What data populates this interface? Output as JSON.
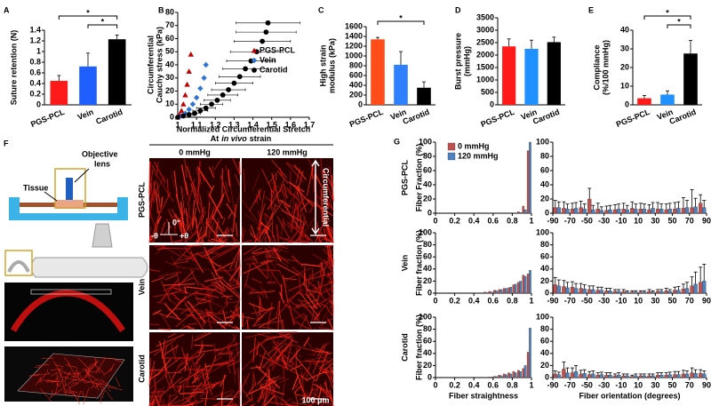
{
  "panel_labels": [
    "A",
    "B",
    "C",
    "D",
    "E",
    "F",
    "G"
  ],
  "imaging": {
    "heading": [
      "At",
      "in vivo",
      "strain"
    ],
    "columns": [
      "0 mmHg",
      "120 mmHg"
    ],
    "rows": [
      "PGS-PCL",
      "Vein",
      "Carotid"
    ],
    "schematic": {
      "tissue": "Tissue",
      "lens": [
        "Objective",
        "lens"
      ]
    },
    "orientation": {
      "zero": "0°",
      "minus": "-θ",
      "plus": "+θ"
    },
    "direction": "Circumferential",
    "scale": "100 μm"
  },
  "chart_data": [
    {
      "type": "bar",
      "ylabel": [
        "Suture retention (N)"
      ],
      "categories": [
        "PGS-PCL",
        "Vein",
        "Carotid"
      ],
      "values": [
        0.45,
        0.72,
        1.23
      ],
      "errors": [
        0.1,
        0.25,
        0.08
      ],
      "colors": [
        "#ff1a1a",
        "#1f5fff",
        "#000000"
      ],
      "ylim": [
        0,
        1.4
      ],
      "yticks": [
        0,
        0.2,
        0.4,
        0.6,
        0.8,
        1,
        1.2,
        1.4
      ],
      "significance": [
        {
          "categories": [
            "PGS-PCL",
            "Carotid"
          ],
          "text": "*"
        },
        {
          "categories": [
            "Vein",
            "Carotid"
          ],
          "text": "*"
        }
      ]
    },
    {
      "type": "scatter",
      "ylabel": [
        "Circumferential",
        "Cauchy stress (kPa)"
      ],
      "xlabel": "Normalized Circumferential Stretch",
      "xlim": [
        1,
        1.7
      ],
      "xticks": [
        1,
        1.1,
        1.2,
        1.3,
        1.4,
        1.5,
        1.6,
        1.7
      ],
      "ylim": [
        0,
        80
      ],
      "yticks": [
        0,
        10,
        20,
        30,
        40,
        50,
        60,
        70,
        80
      ],
      "legend": "center right",
      "series": [
        {
          "name": "PGS-PCL",
          "color": "#c00000",
          "marker": "triangle",
          "x": [
            1.0,
            1.01,
            1.02,
            1.03,
            1.04,
            1.05,
            1.06,
            1.07
          ],
          "values": [
            0,
            2,
            5,
            10,
            17,
            25,
            35,
            48
          ]
        },
        {
          "name": "Vein",
          "color": "#2e75d6",
          "marker": "diamond",
          "x": [
            1.0,
            1.02,
            1.04,
            1.06,
            1.08,
            1.1,
            1.12,
            1.14,
            1.15
          ],
          "values": [
            0,
            1,
            3,
            6,
            10,
            15,
            22,
            30,
            40
          ]
        },
        {
          "name": "Carotid",
          "color": "#000000",
          "marker": "circle",
          "x": [
            1.0,
            1.03,
            1.06,
            1.09,
            1.12,
            1.15,
            1.18,
            1.21,
            1.24,
            1.27,
            1.3,
            1.33,
            1.36,
            1.39,
            1.42,
            1.45,
            1.47,
            1.48
          ],
          "values": [
            0,
            1,
            2,
            3,
            5,
            7,
            10,
            13,
            17,
            21,
            26,
            31,
            37,
            43,
            50,
            58,
            65,
            72
          ],
          "x_errors": [
            0,
            0.01,
            0.02,
            0.03,
            0.04,
            0.05,
            0.06,
            0.07,
            0.08,
            0.09,
            0.1,
            0.11,
            0.12,
            0.13,
            0.14,
            0.15,
            0.16,
            0.17
          ]
        }
      ]
    },
    {
      "type": "bar",
      "ylabel": [
        "High strain",
        "modulus (kPa)"
      ],
      "categories": [
        "PGS-PCL",
        "Vein",
        "Carotid"
      ],
      "values": [
        1340,
        820,
        350
      ],
      "errors": [
        40,
        270,
        120
      ],
      "colors": [
        "#ff4d1a",
        "#2f80ff",
        "#000000"
      ],
      "ylim": [
        0,
        1600
      ],
      "yticks": [
        0,
        200,
        400,
        600,
        800,
        1000,
        1200,
        1400,
        1600
      ],
      "significance": [
        {
          "categories": [
            "PGS-PCL",
            "Carotid"
          ],
          "text": "*"
        }
      ]
    },
    {
      "type": "bar",
      "ylabel": [
        "Burst pressure",
        "(mmHg)"
      ],
      "categories": [
        "PGS-PCL",
        "Vein",
        "Carotid"
      ],
      "values": [
        2350,
        2250,
        2520
      ],
      "errors": [
        300,
        350,
        200
      ],
      "colors": [
        "#ff1a1a",
        "#1e90ff",
        "#000000"
      ],
      "ylim": [
        0,
        3500
      ],
      "yticks": [
        0,
        500,
        1000,
        1500,
        2000,
        2500,
        3000,
        3500
      ]
    },
    {
      "type": "bar",
      "ylabel": [
        "Compliance",
        "(%/100 mmHg)"
      ],
      "categories": [
        "PGS-PCL",
        "Vein",
        "Carotid"
      ],
      "values": [
        3.5,
        5.5,
        27.5
      ],
      "errors": [
        1.5,
        2,
        7
      ],
      "colors": [
        "#ff1a1a",
        "#1e90ff",
        "#000000"
      ],
      "ylim": [
        0,
        40
      ],
      "yticks": [
        0,
        10,
        20,
        30,
        40
      ],
      "significance": [
        {
          "categories": [
            "PGS-PCL",
            "Carotid"
          ],
          "text": "*"
        },
        {
          "categories": [
            "Vein",
            "Carotid"
          ],
          "text": "*"
        }
      ]
    },
    {
      "type": "bar",
      "row_label": "PGS-PCL",
      "ylabel": [
        "Fiber Fraction (%)"
      ],
      "legend": "upper left",
      "x": [
        0.525,
        0.575,
        0.625,
        0.675,
        0.725,
        0.775,
        0.825,
        0.875,
        0.925,
        0.975
      ],
      "xlim": [
        0,
        1
      ],
      "xticks": [
        0,
        0.2,
        0.4,
        0.6,
        0.8,
        1
      ],
      "ylim": [
        0,
        100
      ],
      "yticks": [
        0,
        20,
        40,
        60,
        80,
        100
      ],
      "series": [
        {
          "name": "0 mmHg",
          "color": "#c0504d",
          "values": [
            0,
            0,
            0,
            0,
            0,
            0,
            0,
            2,
            10,
            88
          ]
        },
        {
          "name": "120 mmHg",
          "color": "#4f81bd",
          "values": [
            0,
            0,
            0,
            0,
            0,
            0,
            0,
            1,
            5,
            100
          ]
        }
      ]
    },
    {
      "type": "bar",
      "x": [
        -85,
        -75,
        -65,
        -55,
        -45,
        -35,
        -25,
        -15,
        -5,
        5,
        15,
        25,
        35,
        45,
        55,
        65,
        75,
        85
      ],
      "xlim": [
        -90,
        90
      ],
      "xticks": [
        -90,
        -70,
        -50,
        -30,
        -10,
        10,
        30,
        50,
        70,
        90
      ],
      "ylim": [
        0,
        100
      ],
      "yticks": [
        0,
        20,
        40,
        60,
        80,
        100
      ],
      "series": [
        {
          "color": "#c0504d",
          "values": [
            8,
            7,
            6,
            8,
            20,
            6,
            4,
            5,
            6,
            7,
            6,
            5,
            6,
            5,
            6,
            7,
            8,
            14
          ],
          "errors": [
            10,
            9,
            8,
            9,
            15,
            8,
            6,
            7,
            8,
            9,
            8,
            7,
            9,
            8,
            9,
            15,
            25,
            12
          ]
        },
        {
          "color": "#4f81bd",
          "values": [
            8,
            6,
            7,
            6,
            5,
            4,
            5,
            6,
            5,
            6,
            6,
            7,
            6,
            6,
            7,
            8,
            9,
            8
          ],
          "errors": [
            8,
            7,
            8,
            7,
            6,
            5,
            6,
            7,
            6,
            7,
            7,
            8,
            7,
            8,
            9,
            10,
            12,
            10
          ]
        }
      ]
    },
    {
      "type": "bar",
      "row_label": "Vein",
      "ylabel": [
        "Fiber fraction (%)"
      ],
      "x": [
        0.525,
        0.575,
        0.625,
        0.675,
        0.725,
        0.775,
        0.825,
        0.875,
        0.925,
        0.975
      ],
      "xlim": [
        0,
        1
      ],
      "xticks": [
        0,
        0.2,
        0.4,
        0.6,
        0.8,
        1
      ],
      "ylim": [
        0,
        100
      ],
      "yticks": [
        0,
        20,
        40,
        60,
        80,
        100
      ],
      "series": [
        {
          "color": "#c0504d",
          "values": [
            2,
            3,
            5,
            6,
            8,
            9,
            14,
            18,
            30,
            32
          ]
        },
        {
          "color": "#4f81bd",
          "values": [
            1,
            2,
            4,
            6,
            8,
            10,
            15,
            20,
            28,
            38
          ]
        }
      ]
    },
    {
      "type": "bar",
      "x": [
        -85,
        -75,
        -65,
        -55,
        -45,
        -35,
        -25,
        -15,
        -5,
        5,
        15,
        25,
        35,
        45,
        55,
        65,
        75,
        85
      ],
      "xlim": [
        -90,
        90
      ],
      "xticks": [
        -90,
        -70,
        -50,
        -30,
        -10,
        10,
        30,
        50,
        70,
        90
      ],
      "ylim": [
        0,
        100
      ],
      "yticks": [
        0,
        20,
        40,
        60,
        80,
        100
      ],
      "series": [
        {
          "color": "#c0504d",
          "values": [
            14,
            11,
            10,
            8,
            6,
            5,
            4,
            3,
            3,
            2,
            2,
            3,
            3,
            4,
            5,
            7,
            12,
            18
          ],
          "errors": [
            12,
            10,
            9,
            8,
            6,
            5,
            4,
            3,
            3,
            2,
            2,
            3,
            3,
            4,
            5,
            8,
            15,
            25
          ]
        },
        {
          "color": "#4f81bd",
          "values": [
            12,
            9,
            8,
            7,
            6,
            5,
            4,
            3,
            2,
            2,
            2,
            2,
            3,
            3,
            5,
            8,
            15,
            20
          ],
          "errors": [
            10,
            9,
            8,
            7,
            6,
            5,
            4,
            3,
            2,
            2,
            2,
            2,
            3,
            3,
            6,
            10,
            20,
            28
          ]
        }
      ]
    },
    {
      "type": "bar",
      "row_label": "Carotid",
      "ylabel": [
        "Fiber fraction (%)"
      ],
      "xlabel": "Fiber straightness",
      "x": [
        0.525,
        0.575,
        0.625,
        0.675,
        0.725,
        0.775,
        0.825,
        0.875,
        0.925,
        0.975
      ],
      "xlim": [
        0,
        1
      ],
      "xticks": [
        0,
        0.2,
        0.4,
        0.6,
        0.8,
        1
      ],
      "ylim": [
        0,
        100
      ],
      "yticks": [
        0,
        20,
        40,
        60,
        80,
        100
      ],
      "series": [
        {
          "color": "#c0504d",
          "values": [
            0,
            1,
            2,
            4,
            6,
            8,
            10,
            12,
            15,
            42
          ]
        },
        {
          "color": "#4f81bd",
          "values": [
            0,
            1,
            2,
            3,
            5,
            6,
            8,
            10,
            20,
            82
          ]
        }
      ]
    },
    {
      "type": "bar",
      "xlabel": "Fiber orientation (degrees)",
      "x": [
        -85,
        -75,
        -65,
        -55,
        -45,
        -35,
        -25,
        -15,
        -5,
        5,
        15,
        25,
        35,
        45,
        55,
        65,
        75,
        85
      ],
      "xlim": [
        -90,
        90
      ],
      "xticks": [
        -90,
        -70,
        -50,
        -30,
        -10,
        10,
        30,
        50,
        70,
        90
      ],
      "ylim": [
        0,
        100
      ],
      "yticks": [
        0,
        20,
        40,
        60,
        80,
        100
      ],
      "series": [
        {
          "color": "#c0504d",
          "values": [
            6,
            14,
            8,
            6,
            5,
            4,
            4,
            3,
            3,
            2,
            3,
            3,
            4,
            4,
            5,
            6,
            8,
            7
          ],
          "errors": [
            5,
            12,
            8,
            6,
            5,
            4,
            4,
            3,
            3,
            2,
            3,
            3,
            4,
            4,
            5,
            6,
            8,
            6
          ]
        },
        {
          "color": "#4f81bd",
          "values": [
            5,
            8,
            10,
            7,
            6,
            5,
            4,
            4,
            3,
            3,
            3,
            3,
            4,
            5,
            5,
            6,
            7,
            6
          ],
          "errors": [
            4,
            8,
            10,
            6,
            5,
            4,
            4,
            4,
            3,
            3,
            3,
            3,
            4,
            4,
            5,
            5,
            6,
            5
          ]
        }
      ]
    }
  ]
}
